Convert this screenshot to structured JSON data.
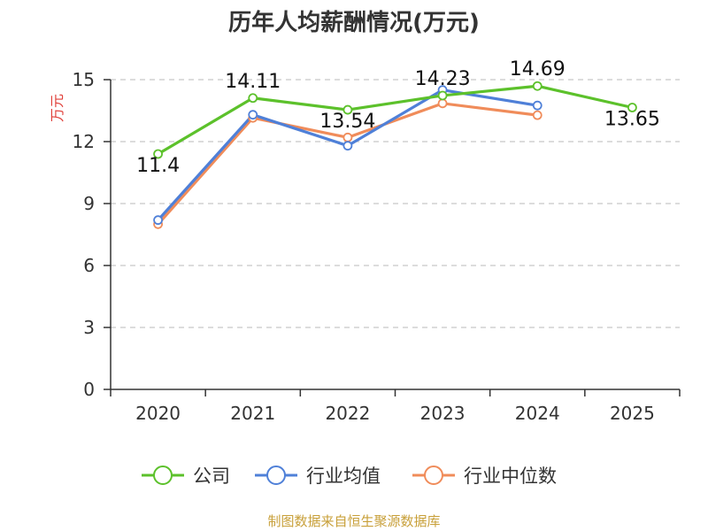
{
  "chart_data": {
    "type": "line",
    "title": "历年人均薪酬情况(万元)",
    "xlabel": "",
    "ylabel": "万元",
    "categories": [
      "2020",
      "2021",
      "2022",
      "2023",
      "2024",
      "2025"
    ],
    "ylim": [
      0,
      15
    ],
    "yticks": [
      0,
      3,
      6,
      9,
      12,
      15
    ],
    "grid": true,
    "legend_position": "bottom",
    "series": [
      {
        "name": "公司",
        "color": "#5cc12b",
        "values": [
          11.4,
          14.11,
          13.54,
          14.23,
          14.69,
          13.65
        ],
        "show_labels": true
      },
      {
        "name": "行业均值",
        "color": "#4f80d8",
        "values": [
          8.2,
          13.3,
          11.8,
          14.5,
          13.75,
          null
        ],
        "show_labels": false
      },
      {
        "name": "行业中位数",
        "color": "#f08c5a",
        "values": [
          8.0,
          13.15,
          12.2,
          13.85,
          13.28,
          null
        ],
        "show_labels": false
      }
    ],
    "data_labels": [
      "11.4",
      "14.11",
      "13.54",
      "14.23",
      "14.69",
      "13.65"
    ]
  },
  "source": "制图数据来自恒生聚源数据库"
}
